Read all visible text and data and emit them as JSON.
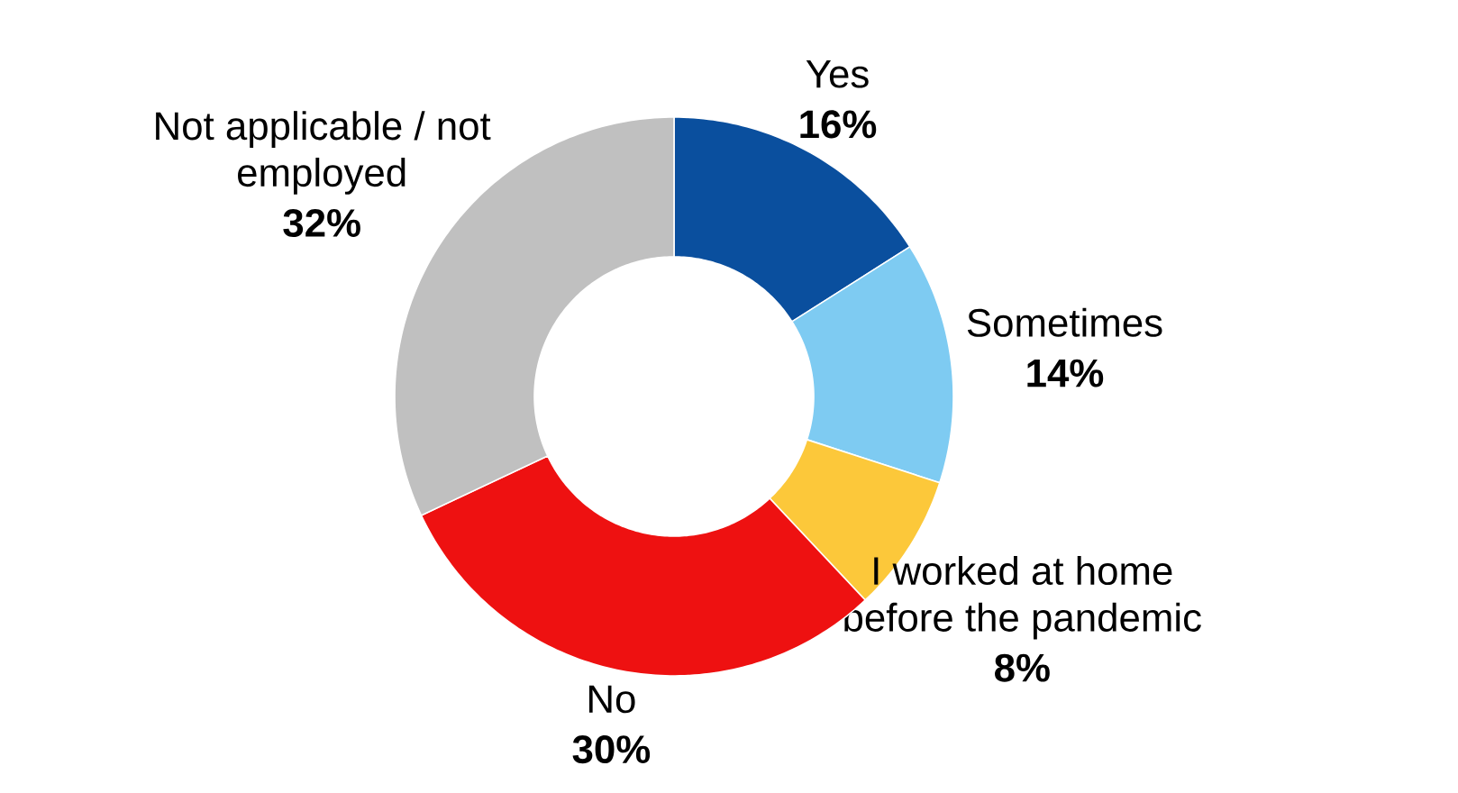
{
  "chart_data": {
    "type": "donut",
    "categories": [
      "Yes",
      "Sometimes",
      "I worked at home before the pandemic",
      "No",
      "Not applicable / not employed"
    ],
    "values": [
      16,
      14,
      8,
      30,
      32
    ],
    "value_labels": [
      "16%",
      "14%",
      "8%",
      "30%",
      "32%"
    ],
    "colors": [
      "#0a4f9e",
      "#7ecbf2",
      "#fcc83a",
      "#ee1111",
      "#c0c0c0"
    ]
  }
}
